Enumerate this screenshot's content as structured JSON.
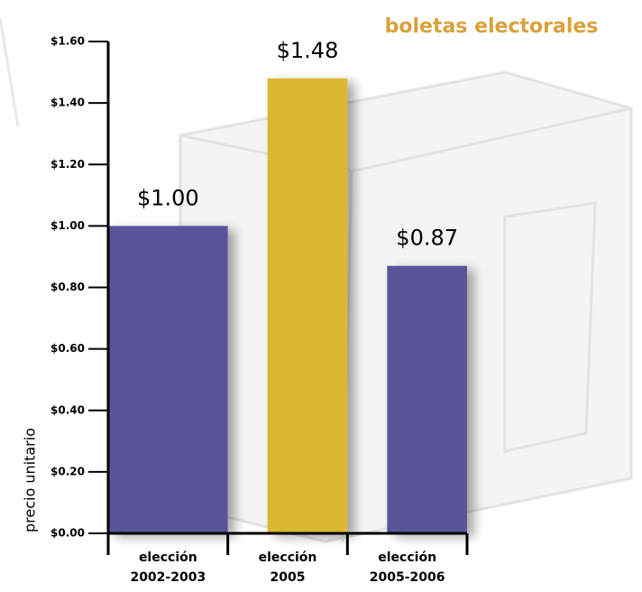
{
  "chart_data": {
    "type": "bar",
    "title": "boletas electorales",
    "y_label": "precio unitario",
    "categories": [
      [
        "elección",
        "2002-2003"
      ],
      [
        "elección",
        "2005"
      ],
      [
        "elección",
        "2005-2006"
      ]
    ],
    "values": [
      1.0,
      1.48,
      0.87
    ],
    "value_labels": [
      "$1.00",
      "$1.48",
      "$0.87"
    ],
    "colors": [
      "#5a559b",
      "#d9b832",
      "#5a559b"
    ],
    "ylim": [
      0,
      1.6
    ],
    "yticks": [
      {
        "value": 0,
        "label": "$0.00"
      },
      {
        "value": 0.2,
        "label": "$0.20"
      },
      {
        "value": 0.4,
        "label": "$0.40"
      },
      {
        "value": 0.6,
        "label": "$0.60"
      },
      {
        "value": 0.8,
        "label": "$0.80"
      },
      {
        "value": 1.0,
        "label": "$1.00"
      },
      {
        "value": 1.2,
        "label": "$1.20"
      },
      {
        "value": 1.4,
        "label": "$1.40"
      },
      {
        "value": 1.6,
        "label": "$1.60"
      }
    ]
  }
}
